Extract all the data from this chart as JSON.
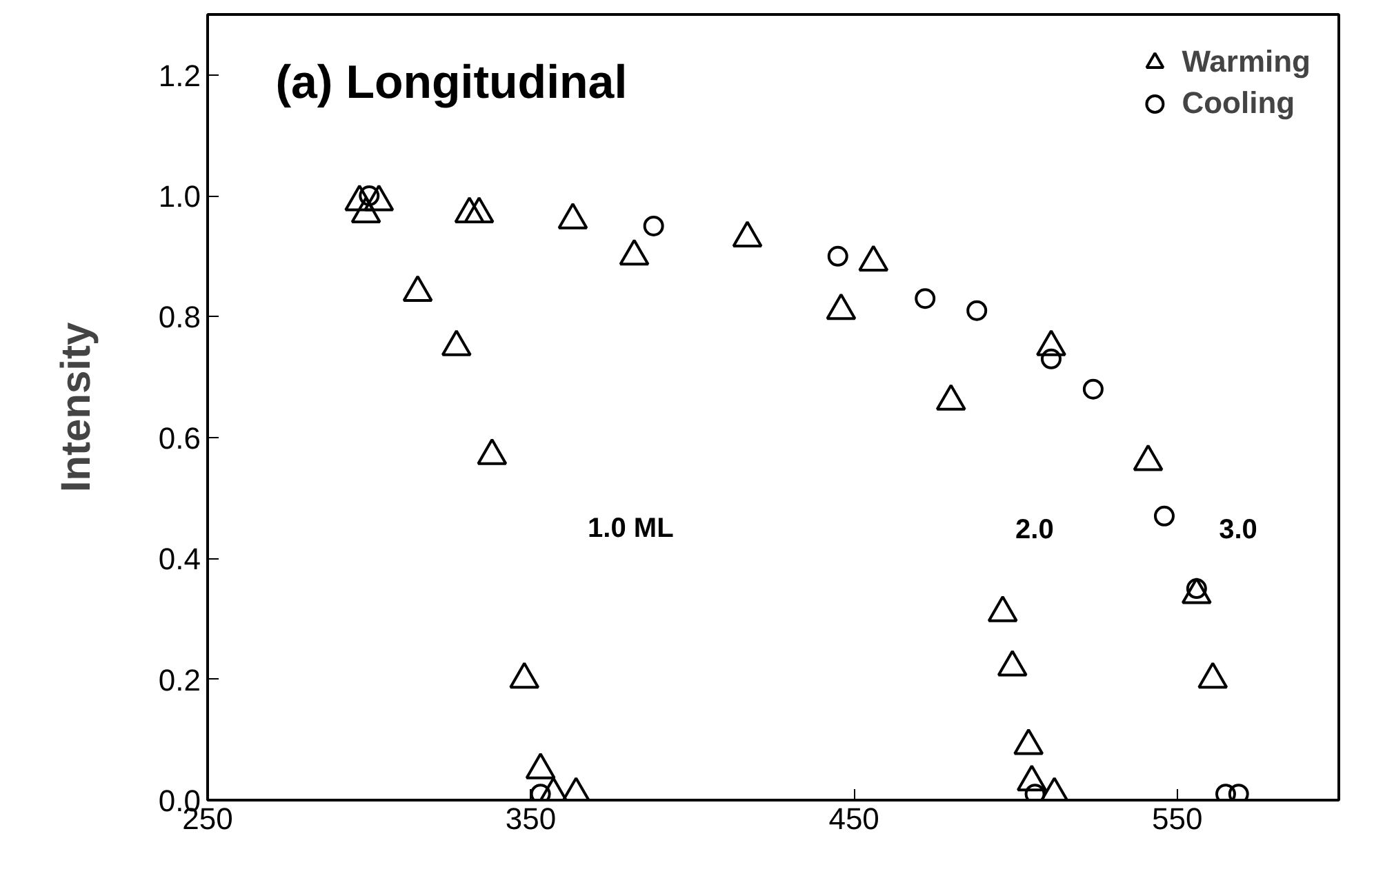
{
  "chart_data": {
    "type": "scatter",
    "title": "(a) Longitudinal",
    "ylabel": "Intensity",
    "xlim": [
      250,
      600
    ],
    "ylim": [
      0,
      1.3
    ],
    "xticks": [
      250,
      350,
      450,
      550
    ],
    "yticks": [
      {
        "value": 0,
        "label": "0.0"
      },
      {
        "value": 0.2,
        "label": "0.2"
      },
      {
        "value": 0.4,
        "label": "0.4"
      },
      {
        "value": 0.6,
        "label": "0.6"
      },
      {
        "value": 0.8,
        "label": "0.8"
      },
      {
        "value": 1.0,
        "label": "1.0"
      },
      {
        "value": 1.2,
        "label": "1.2"
      }
    ],
    "grid": false,
    "legend": "top right",
    "annotations": [
      "1.0 ML",
      "2.0",
      "3.0"
    ],
    "series": [
      {
        "name": "Warming",
        "color": "#000000",
        "marker": "triangle",
        "x": [
          297,
          299,
          303,
          315,
          327,
          331,
          334,
          338,
          348,
          353,
          357,
          363,
          364,
          382,
          417,
          446,
          456,
          480,
          496,
          499,
          504,
          505,
          511,
          512,
          541,
          556,
          561
        ],
        "values": [
          0.99,
          0.97,
          0.99,
          0.84,
          0.75,
          0.97,
          0.97,
          0.57,
          0.2,
          0.05,
          0.01,
          0.96,
          0.01,
          0.9,
          0.93,
          0.81,
          0.89,
          0.66,
          0.31,
          0.22,
          0.09,
          0.03,
          0.75,
          0.01,
          0.56,
          0.34,
          0.2
        ]
      },
      {
        "name": "Cooling",
        "color": "#000000",
        "marker": "circle",
        "x": [
          300,
          353,
          388,
          445,
          472,
          488,
          506,
          511,
          524,
          546,
          556,
          565,
          569
        ],
        "values": [
          1.0,
          0.01,
          0.95,
          0.9,
          0.83,
          0.81,
          0.01,
          0.73,
          0.68,
          0.47,
          0.35,
          0.01,
          0.01
        ]
      }
    ]
  }
}
